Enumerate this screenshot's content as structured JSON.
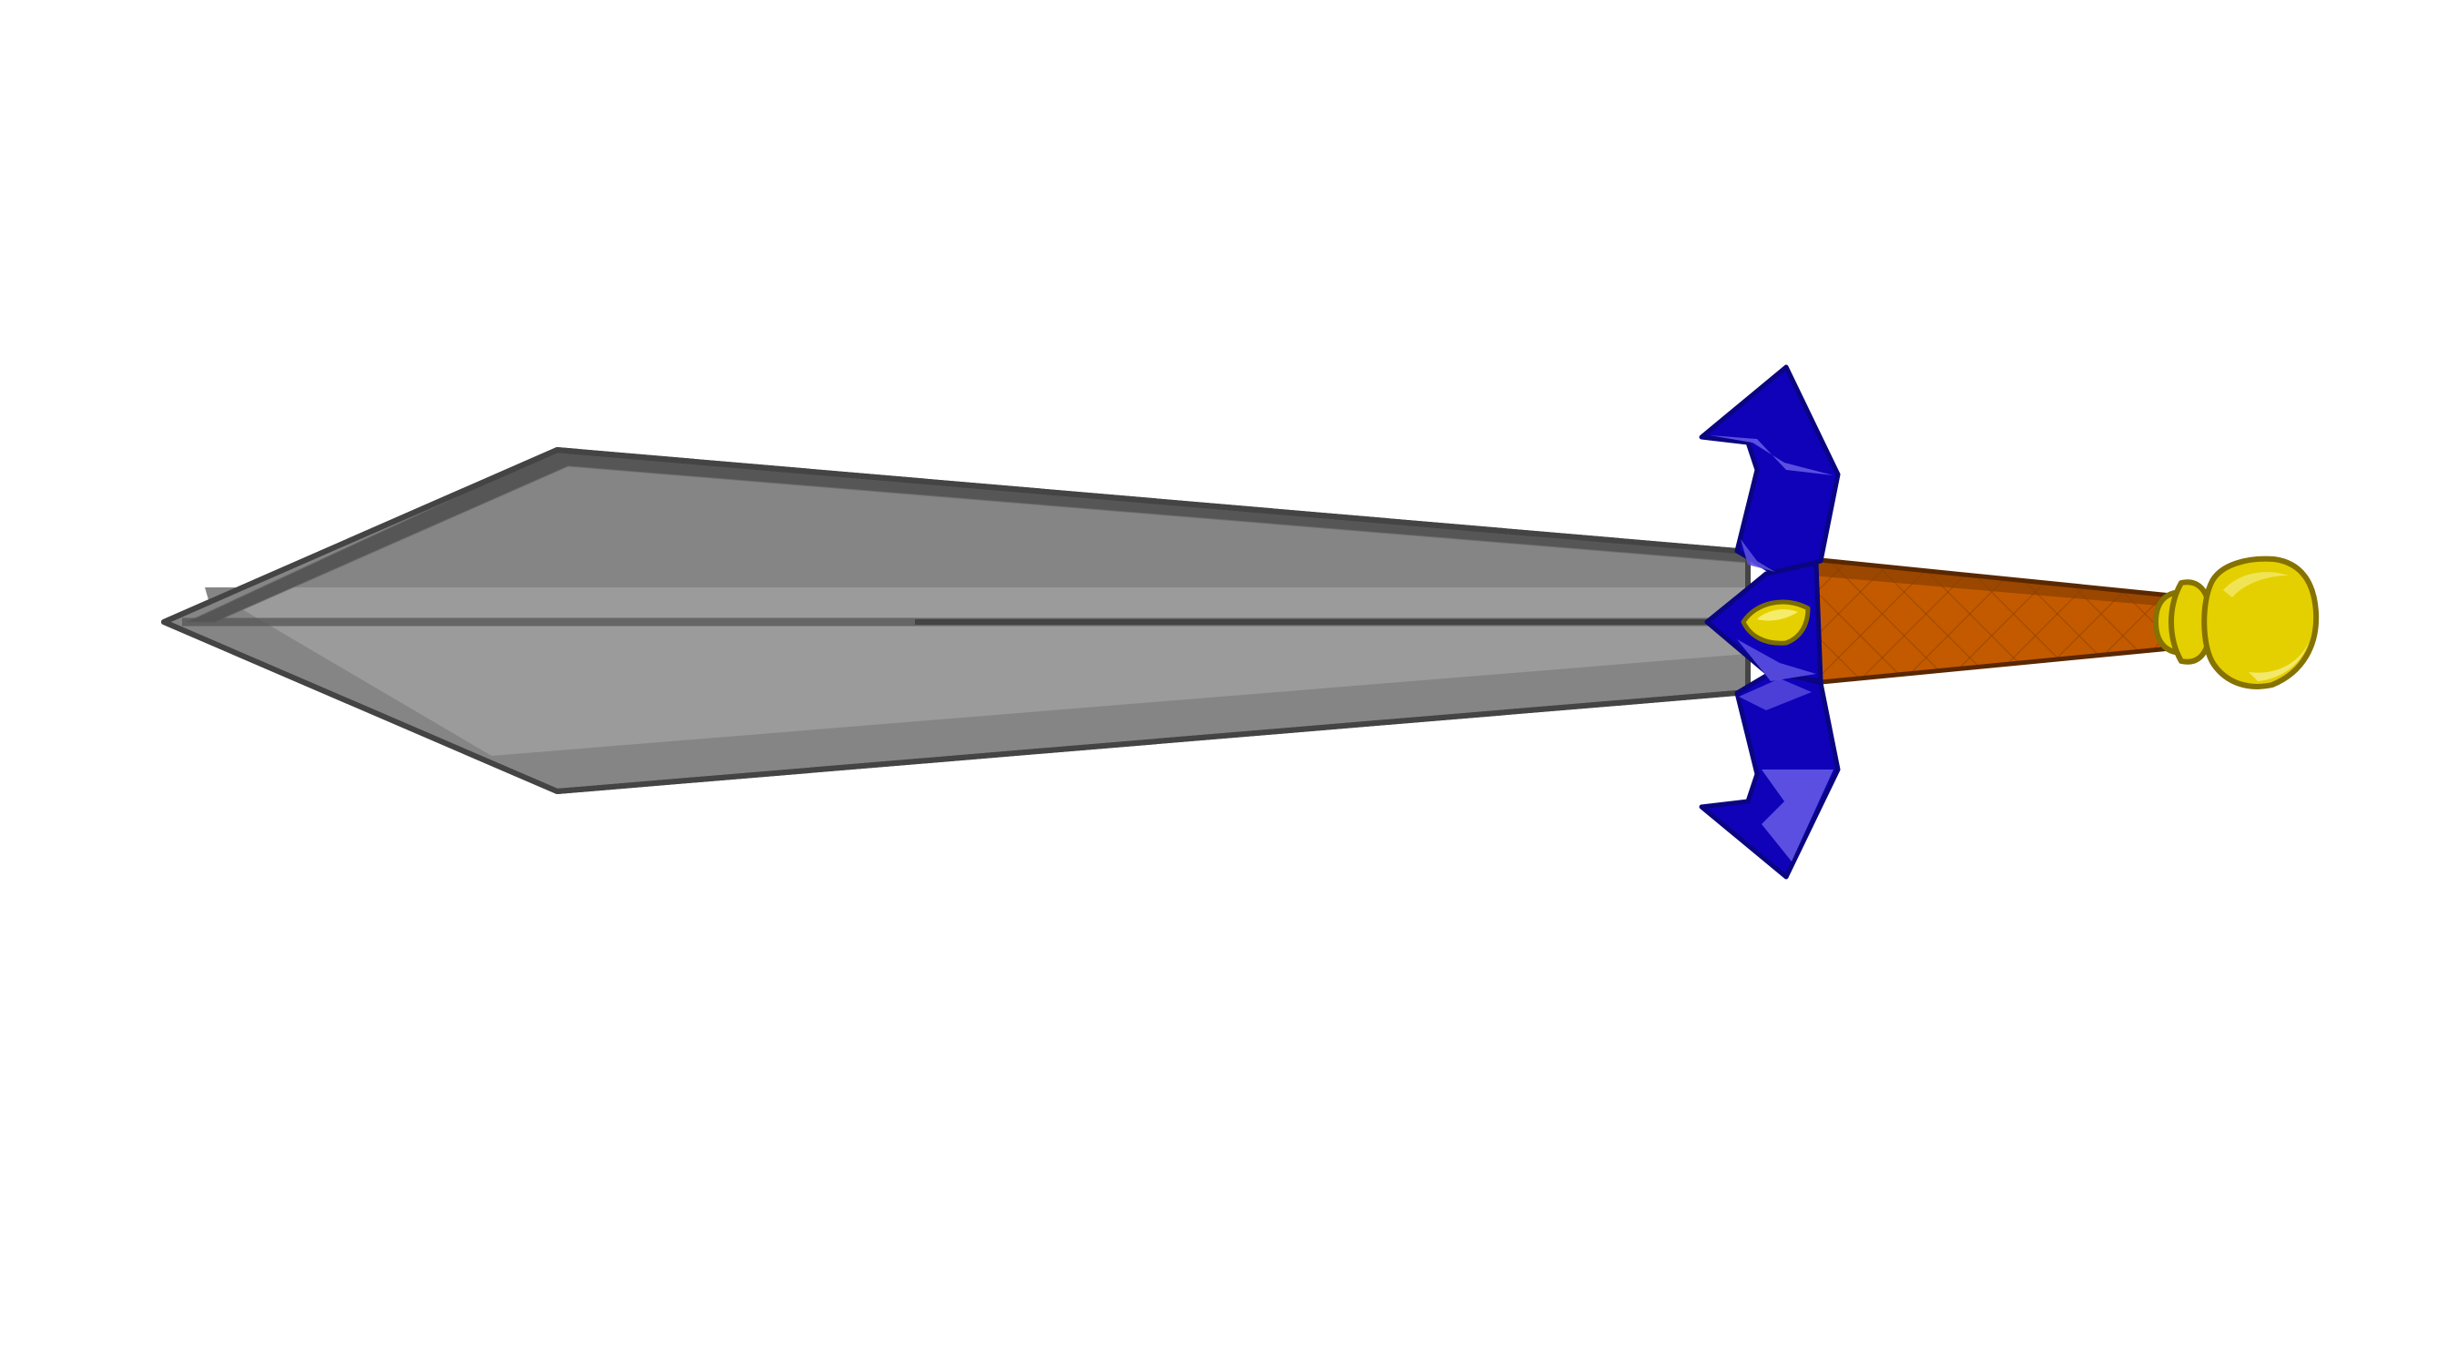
{
  "scene": {
    "subject": "sword-illustration",
    "background_color": "#ffffff"
  },
  "colors": {
    "blade_dark": "#858585",
    "blade_light": "#9b9b9b",
    "blade_outline": "#444444",
    "blade_fuller": "#555555",
    "guard_blue": "#0f02b8",
    "guard_highlight": "#5a4fe0",
    "guard_outline": "#0a0580",
    "gem_yellow": "#e4d000",
    "gem_outline": "#7a6c00",
    "grip_orange": "#c35a00",
    "grip_shadow": "#8a3e00",
    "grip_outline": "#5a2800",
    "pommel_yellow": "#e4cf00",
    "pommel_highlight": "#f3e86a",
    "pommel_outline": "#857200"
  },
  "icons": {
    "blade": "blade-shape",
    "crossguard": "crossguard-shape",
    "gem": "gem-shape",
    "grip": "grip-shape",
    "pommel": "pommel-shape"
  }
}
